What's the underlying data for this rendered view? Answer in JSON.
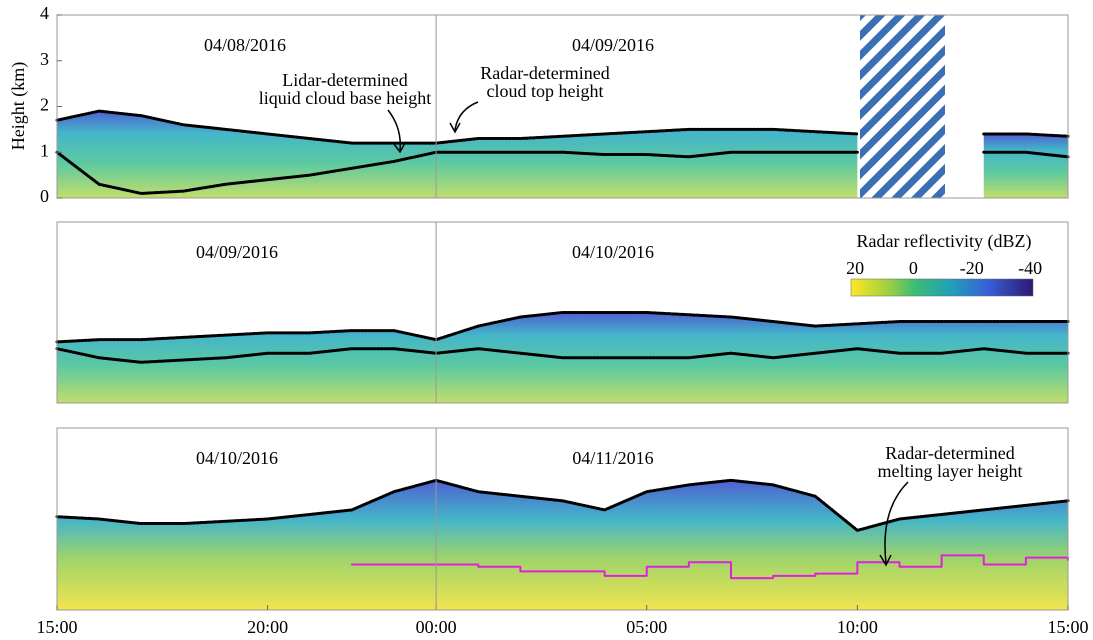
{
  "chart_data": [
    {
      "type": "line",
      "ylabel": "Height (km)",
      "dates": [
        "04/08/2016",
        "04/09/2016"
      ],
      "annotations": [
        {
          "text": [
            "Lidar-determined",
            "liquid cloud base height"
          ]
        },
        {
          "text": [
            "Radar-determined",
            "cloud top height"
          ]
        }
      ],
      "xlim": [
        0,
        24
      ],
      "ylim": [
        0,
        4
      ],
      "yticks": [
        0,
        1,
        2,
        3,
        4
      ],
      "x": [
        0,
        1,
        2,
        3,
        4,
        5,
        6,
        7,
        8,
        9,
        10,
        11,
        12,
        13,
        14,
        15,
        16,
        17,
        18,
        19,
        20,
        21,
        22,
        23,
        24
      ],
      "series": [
        {
          "color": "#000000",
          "values": [
            1.7,
            1.9,
            1.8,
            1.6,
            1.5,
            1.4,
            1.3,
            1.2,
            1.2,
            1.2,
            1.3,
            1.3,
            1.35,
            1.4,
            1.45,
            1.5,
            1.5,
            1.5,
            1.45,
            1.4,
            null,
            null,
            1.4,
            1.4,
            1.35
          ]
        },
        {
          "color": "#000000",
          "values": [
            1.0,
            0.3,
            0.1,
            0.15,
            0.3,
            0.4,
            0.5,
            0.65,
            0.8,
            1.0,
            1.0,
            1.0,
            1.0,
            0.95,
            0.95,
            0.9,
            1.0,
            1.0,
            1.0,
            1.0,
            null,
            null,
            1.0,
            1.0,
            0.9
          ]
        }
      ]
    },
    {
      "type": "line",
      "dates": [
        "04/09/2016",
        "04/10/2016"
      ],
      "colorbar": {
        "label": "Radar reflectivity (dBZ)",
        "lim": [
          21.4,
          -41
        ],
        "ticks": [
          20,
          0,
          -20,
          -40
        ]
      },
      "xlim": [
        0,
        24
      ],
      "ylim": [
        0,
        4
      ],
      "x": [
        0,
        1,
        2,
        3,
        4,
        5,
        6,
        7,
        8,
        9,
        10,
        11,
        12,
        13,
        14,
        15,
        16,
        17,
        18,
        19,
        20,
        21,
        22,
        23,
        24
      ],
      "series": [
        {
          "color": "#000000",
          "values": [
            1.35,
            1.4,
            1.4,
            1.45,
            1.5,
            1.55,
            1.55,
            1.6,
            1.6,
            1.4,
            1.7,
            1.9,
            2.0,
            2.0,
            2.0,
            1.95,
            1.9,
            1.8,
            1.7,
            1.75,
            1.8,
            1.8,
            1.8,
            1.8,
            1.8
          ]
        },
        {
          "color": "#000000",
          "values": [
            1.2,
            1.0,
            0.9,
            0.95,
            1.0,
            1.1,
            1.1,
            1.2,
            1.2,
            1.1,
            1.2,
            1.1,
            1.0,
            1.0,
            1.0,
            1.0,
            1.1,
            1.0,
            1.1,
            1.2,
            1.1,
            1.1,
            1.2,
            1.1,
            1.1
          ]
        }
      ]
    },
    {
      "type": "line",
      "dates": [
        "04/10/2016",
        "04/11/2016"
      ],
      "annotations": [
        {
          "text": [
            "Radar-determined",
            "melting layer height"
          ]
        }
      ],
      "xlim": [
        0,
        24
      ],
      "ylim": [
        0,
        4
      ],
      "xticks": [
        {
          "value": 0,
          "label": "15:00"
        },
        {
          "value": 5,
          "label": "20:00"
        },
        {
          "value": 9,
          "label": "00:00"
        },
        {
          "value": 14,
          "label": "05:00"
        },
        {
          "value": 19,
          "label": "10:00"
        },
        {
          "value": 24,
          "label": "15:00"
        }
      ],
      "x": [
        0,
        1,
        2,
        3,
        4,
        5,
        6,
        7,
        8,
        9,
        10,
        11,
        12,
        13,
        14,
        15,
        16,
        17,
        18,
        19,
        20,
        21,
        22,
        23,
        24
      ],
      "series": [
        {
          "color": "#000000",
          "values": [
            2.05,
            2.0,
            1.9,
            1.9,
            1.95,
            2.0,
            2.1,
            2.2,
            2.6,
            2.85,
            2.6,
            2.5,
            2.4,
            2.2,
            2.6,
            2.75,
            2.85,
            2.75,
            2.5,
            1.75,
            2.0,
            2.1,
            2.2,
            2.3,
            2.4
          ]
        },
        {
          "color": "#e020e0",
          "values": [
            null,
            null,
            null,
            null,
            null,
            null,
            null,
            1.0,
            1.0,
            1.0,
            0.95,
            0.85,
            0.85,
            0.75,
            0.95,
            1.05,
            0.7,
            0.75,
            0.8,
            1.05,
            0.95,
            1.2,
            1.0,
            1.15,
            1.1
          ]
        }
      ]
    }
  ]
}
